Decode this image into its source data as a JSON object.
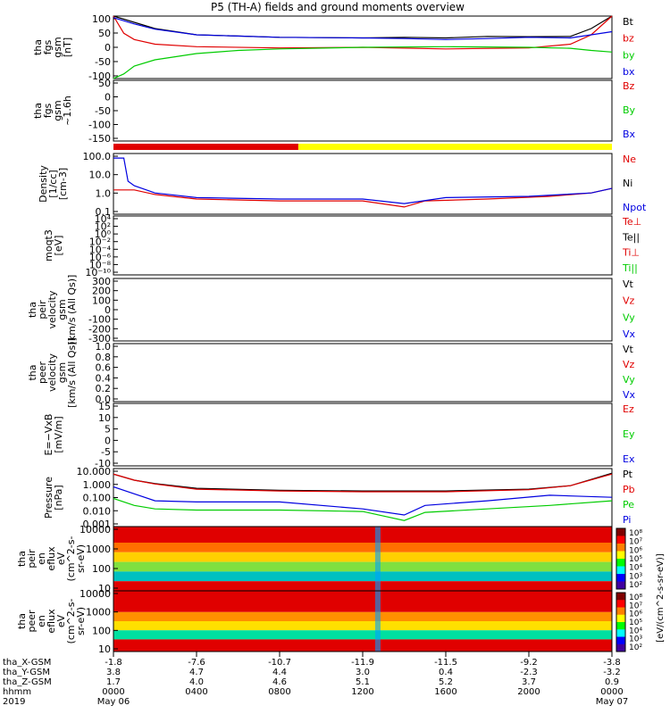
{
  "title": "P5 (TH-A) fields and ground moments overview",
  "colors": {
    "black": "#000000",
    "red": "#e00000",
    "green": "#00cc00",
    "blue": "#0000e0",
    "yellow": "#ffff00"
  },
  "bottom_axis": {
    "rows": [
      {
        "label": "tha_X-GSM",
        "values": [
          "-1.8",
          "-7.6",
          "-10.7",
          "-11.9",
          "-11.5",
          "-9.2",
          "-3.8"
        ]
      },
      {
        "label": "tha_Y-GSM",
        "values": [
          "3.8",
          "4.7",
          "4.4",
          "3.0",
          "0.4",
          "-2.3",
          "-3.2"
        ]
      },
      {
        "label": "tha_Z-GSM",
        "values": [
          "1.7",
          "4.0",
          "4.6",
          "5.1",
          "5.2",
          "3.7",
          "0.9"
        ]
      },
      {
        "label": "hhmm",
        "values": [
          "0000",
          "0400",
          "0800",
          "1200",
          "1600",
          "2000",
          "0000"
        ]
      },
      {
        "label": "2019",
        "values": [
          "May 06",
          "",
          "",
          "",
          "",
          "",
          "May 07"
        ]
      }
    ]
  },
  "panels": [
    {
      "id": "fgs",
      "ylabel": [
        "tha",
        "fgs",
        "gsm",
        "[nT]"
      ],
      "ticks": [
        "100",
        "50",
        "0",
        "-50",
        "-100"
      ],
      "ylim": [
        -100,
        100
      ],
      "legend": [
        {
          "text": "Bt",
          "color": "black"
        },
        {
          "text": "bz",
          "color": "red"
        },
        {
          "text": "by",
          "color": "green"
        },
        {
          "text": "bx",
          "color": "blue"
        }
      ]
    },
    {
      "id": "fgs_hi",
      "ylabel": [
        "tha",
        "fgs",
        "gsm",
        "~1.6h"
      ],
      "ticks": [
        "50",
        "0",
        "-50",
        "-100",
        "-150"
      ],
      "ylim": [
        -175,
        50
      ],
      "legend": [
        {
          "text": "Bz",
          "color": "red"
        },
        {
          "text": "By",
          "color": "green"
        },
        {
          "text": "Bx",
          "color": "blue"
        }
      ]
    },
    {
      "id": "density",
      "ylabel": [
        "Density",
        "[1/cc]",
        "[cm-3]"
      ],
      "ticks": [
        "100.0",
        "10.0",
        "1.0",
        "0.1"
      ],
      "ylim": [
        0.02,
        200
      ],
      "log": true,
      "legend": [
        {
          "text": "Ne",
          "color": "red"
        },
        {
          "text": "Ni",
          "color": "black"
        },
        {
          "text": "Npot",
          "color": "blue"
        }
      ]
    },
    {
      "id": "temp",
      "ylabel": [
        "moqt3",
        "[eV]"
      ],
      "ticks": [
        "10⁴",
        "10²",
        "10⁰",
        "10⁻²",
        "10⁻⁴",
        "10⁻⁶",
        "10⁻⁸",
        "10⁻¹⁰"
      ],
      "ylim": [
        1e-10,
        10000.0
      ],
      "log": true,
      "legend": [
        {
          "text": "Te⊥",
          "color": "red"
        },
        {
          "text": "Te||",
          "color": "black"
        },
        {
          "text": "Ti⊥",
          "color": "red"
        },
        {
          "text": "Ti||",
          "color": "green"
        }
      ]
    },
    {
      "id": "peir_vel",
      "ylabel": [
        "tha",
        "peir",
        "velocity",
        "gsm",
        "[km/s (All Qs)]"
      ],
      "ticks": [
        "300",
        "200",
        "100",
        "0",
        "-100",
        "-200",
        "-300"
      ],
      "ylim": [
        -300,
        300
      ],
      "legend": [
        {
          "text": "Vt",
          "color": "black"
        },
        {
          "text": "Vz",
          "color": "red"
        },
        {
          "text": "Vy",
          "color": "green"
        },
        {
          "text": "Vx",
          "color": "blue"
        }
      ]
    },
    {
      "id": "peer_vel",
      "ylabel": [
        "tha",
        "peer",
        "velocity",
        "gsm",
        "[km/s (All Qs)]"
      ],
      "ticks": [
        "1.0",
        "0.8",
        "0.6",
        "0.4",
        "0.2",
        "0.0"
      ],
      "ylim": [
        0,
        1
      ],
      "legend": [
        {
          "text": "Vt",
          "color": "black"
        },
        {
          "text": "Vz",
          "color": "red"
        },
        {
          "text": "Vy",
          "color": "green"
        },
        {
          "text": "Vx",
          "color": "blue"
        }
      ]
    },
    {
      "id": "efield",
      "ylabel": [
        "E=−VxB",
        "[mV/m]"
      ],
      "ticks": [
        "15",
        "10",
        "5",
        "0",
        "-5",
        "-10"
      ],
      "ylim": [
        -12,
        15
      ],
      "legend": [
        {
          "text": "Ez",
          "color": "red"
        },
        {
          "text": "Ey",
          "color": "green"
        },
        {
          "text": "Ex",
          "color": "blue"
        }
      ]
    },
    {
      "id": "pressure",
      "ylabel": [
        "Pressure",
        "[nPa]"
      ],
      "ticks": [
        "10.000",
        "1.000",
        "0.100",
        "0.010",
        "0.001"
      ],
      "ylim": [
        0.0003,
        30
      ],
      "log": true,
      "legend": [
        {
          "text": "Pt",
          "color": "black"
        },
        {
          "text": "Pb",
          "color": "red"
        },
        {
          "text": "Pe",
          "color": "green"
        },
        {
          "text": "Pi",
          "color": "blue"
        }
      ]
    },
    {
      "id": "peir_flux",
      "ylabel": [
        "tha",
        "peir",
        "en",
        "eflux",
        "eV",
        "(cm^2-s-",
        "sr-eV)"
      ],
      "ticks": [
        "10000",
        "1000",
        "100",
        "10"
      ],
      "legend": []
    },
    {
      "id": "peer_flux",
      "ylabel": [
        "tha",
        "peer",
        "en",
        "eflux",
        "eV",
        "(cm^2-s-",
        "sr-eV)"
      ],
      "ticks": [
        "10000",
        "1000",
        "100",
        "10"
      ],
      "legend": []
    }
  ],
  "colorbar": {
    "ticks_top": [
      "10⁸",
      "10⁷",
      "10⁶",
      "10⁵",
      "10⁴",
      "10³",
      "10²"
    ],
    "ticks_bottom": [
      "10⁸",
      "10⁷",
      "10⁶",
      "10⁵",
      "10⁴",
      "10³",
      "10²"
    ],
    "label": "[eV/(cm^2-s-sr-eV)]"
  },
  "chart_data": {
    "type": "line",
    "title": "P5 (TH-A) fields and ground moments overview",
    "x": {
      "label": "hhmm",
      "ticks": [
        "0000",
        "0400",
        "0800",
        "1200",
        "1600",
        "2000",
        "0000"
      ],
      "range_hours": [
        0,
        24
      ]
    },
    "series": [
      {
        "name": "Bt",
        "panel": "fgs",
        "color": "black",
        "points": [
          [
            0,
            100
          ],
          [
            1,
            80
          ],
          [
            2,
            60
          ],
          [
            4,
            40
          ],
          [
            8,
            32
          ],
          [
            12,
            30
          ],
          [
            14,
            32
          ],
          [
            16,
            30
          ],
          [
            18,
            35
          ],
          [
            20,
            34
          ],
          [
            22,
            35
          ],
          [
            23,
            60
          ],
          [
            24,
            100
          ]
        ]
      },
      {
        "name": "bz",
        "panel": "fgs",
        "color": "red",
        "points": [
          [
            0,
            100
          ],
          [
            0.5,
            45
          ],
          [
            1,
            25
          ],
          [
            2,
            10
          ],
          [
            4,
            2
          ],
          [
            8,
            -2
          ],
          [
            12,
            0
          ],
          [
            16,
            -5
          ],
          [
            20,
            -2
          ],
          [
            22,
            10
          ],
          [
            23,
            40
          ],
          [
            24,
            100
          ]
        ]
      },
      {
        "name": "by",
        "panel": "fgs",
        "color": "green",
        "points": [
          [
            0,
            -100
          ],
          [
            0.5,
            -85
          ],
          [
            1,
            -60
          ],
          [
            2,
            -40
          ],
          [
            4,
            -20
          ],
          [
            6,
            -10
          ],
          [
            8,
            -5
          ],
          [
            12,
            0
          ],
          [
            16,
            2
          ],
          [
            20,
            0
          ],
          [
            22,
            -3
          ],
          [
            23,
            -10
          ],
          [
            24,
            -15
          ]
        ]
      },
      {
        "name": "bx",
        "panel": "fgs",
        "color": "blue",
        "points": [
          [
            0,
            95
          ],
          [
            1,
            75
          ],
          [
            2,
            58
          ],
          [
            4,
            40
          ],
          [
            8,
            32
          ],
          [
            12,
            30
          ],
          [
            14,
            28
          ],
          [
            16,
            25
          ],
          [
            18,
            28
          ],
          [
            20,
            32
          ],
          [
            22,
            30
          ],
          [
            23,
            40
          ],
          [
            24,
            50
          ]
        ]
      },
      {
        "name": "Ne",
        "panel": "density",
        "color": "red",
        "points": [
          [
            0,
            0.8
          ],
          [
            1,
            0.8
          ],
          [
            2,
            0.4
          ],
          [
            4,
            0.2
          ],
          [
            8,
            0.15
          ],
          [
            11,
            0.15
          ],
          [
            12,
            0.15
          ],
          [
            14,
            0.06
          ],
          [
            15,
            0.15
          ],
          [
            18,
            0.2
          ],
          [
            21,
            0.3
          ],
          [
            23,
            0.5
          ],
          [
            24,
            1
          ]
        ]
      },
      {
        "name": "Npot",
        "panel": "density",
        "color": "blue",
        "points": [
          [
            0,
            100
          ],
          [
            0.5,
            100
          ],
          [
            0.7,
            3
          ],
          [
            1,
            1.5
          ],
          [
            2,
            0.5
          ],
          [
            4,
            0.25
          ],
          [
            8,
            0.2
          ],
          [
            12,
            0.2
          ],
          [
            14,
            0.1
          ],
          [
            16,
            0.25
          ],
          [
            20,
            0.3
          ],
          [
            23,
            0.5
          ],
          [
            24,
            1
          ]
        ]
      },
      {
        "name": "Pt",
        "panel": "pressure",
        "color": "black",
        "points": [
          [
            0,
            10
          ],
          [
            1,
            3
          ],
          [
            2,
            1.5
          ],
          [
            4,
            0.6
          ],
          [
            8,
            0.4
          ],
          [
            12,
            0.35
          ],
          [
            16,
            0.35
          ],
          [
            20,
            0.5
          ],
          [
            22,
            1
          ],
          [
            24,
            12
          ]
        ]
      },
      {
        "name": "Pb",
        "panel": "pressure",
        "color": "red",
        "points": [
          [
            0,
            10
          ],
          [
            1,
            3
          ],
          [
            2,
            1.4
          ],
          [
            4,
            0.5
          ],
          [
            8,
            0.35
          ],
          [
            12,
            0.3
          ],
          [
            16,
            0.3
          ],
          [
            20,
            0.45
          ],
          [
            22,
            1
          ],
          [
            24,
            10
          ]
        ]
      },
      {
        "name": "Pi",
        "panel": "pressure",
        "color": "blue",
        "points": [
          [
            0,
            0.8
          ],
          [
            1,
            0.2
          ],
          [
            2,
            0.05
          ],
          [
            4,
            0.04
          ],
          [
            8,
            0.04
          ],
          [
            12,
            0.01
          ],
          [
            14,
            0.003
          ],
          [
            15,
            0.02
          ],
          [
            18,
            0.05
          ],
          [
            21,
            0.15
          ],
          [
            24,
            0.1
          ]
        ]
      },
      {
        "name": "Pe",
        "panel": "pressure",
        "color": "green",
        "points": [
          [
            0,
            0.08
          ],
          [
            1,
            0.02
          ],
          [
            2,
            0.01
          ],
          [
            4,
            0.008
          ],
          [
            8,
            0.008
          ],
          [
            12,
            0.006
          ],
          [
            14,
            0.001
          ],
          [
            15,
            0.005
          ],
          [
            18,
            0.01
          ],
          [
            21,
            0.02
          ],
          [
            24,
            0.05
          ]
        ]
      }
    ]
  }
}
